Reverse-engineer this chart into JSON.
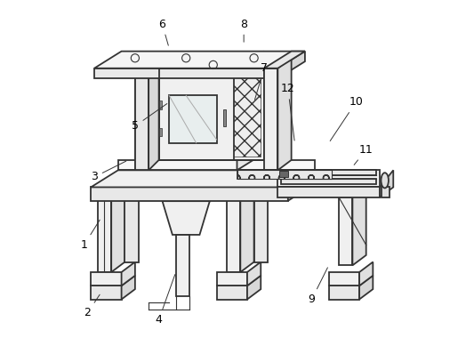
{
  "bg_color": "#ffffff",
  "line_color": "#333333",
  "line_width": 1.3,
  "thin_line": 0.8,
  "figsize": [
    5.33,
    3.98
  ],
  "dpi": 100,
  "label_positions": {
    "1": [
      0.05,
      0.3,
      0.1,
      0.38
    ],
    "2": [
      0.06,
      0.1,
      0.1,
      0.16
    ],
    "3": [
      0.08,
      0.5,
      0.18,
      0.55
    ],
    "4": [
      0.27,
      0.08,
      0.32,
      0.22
    ],
    "5": [
      0.2,
      0.65,
      0.3,
      0.72
    ],
    "6": [
      0.28,
      0.95,
      0.3,
      0.88
    ],
    "7": [
      0.58,
      0.82,
      0.55,
      0.72
    ],
    "8": [
      0.52,
      0.95,
      0.52,
      0.89
    ],
    "9": [
      0.72,
      0.14,
      0.77,
      0.24
    ],
    "10": [
      0.85,
      0.72,
      0.77,
      0.6
    ],
    "11": [
      0.88,
      0.58,
      0.84,
      0.53
    ],
    "12": [
      0.65,
      0.76,
      0.67,
      0.6
    ]
  }
}
